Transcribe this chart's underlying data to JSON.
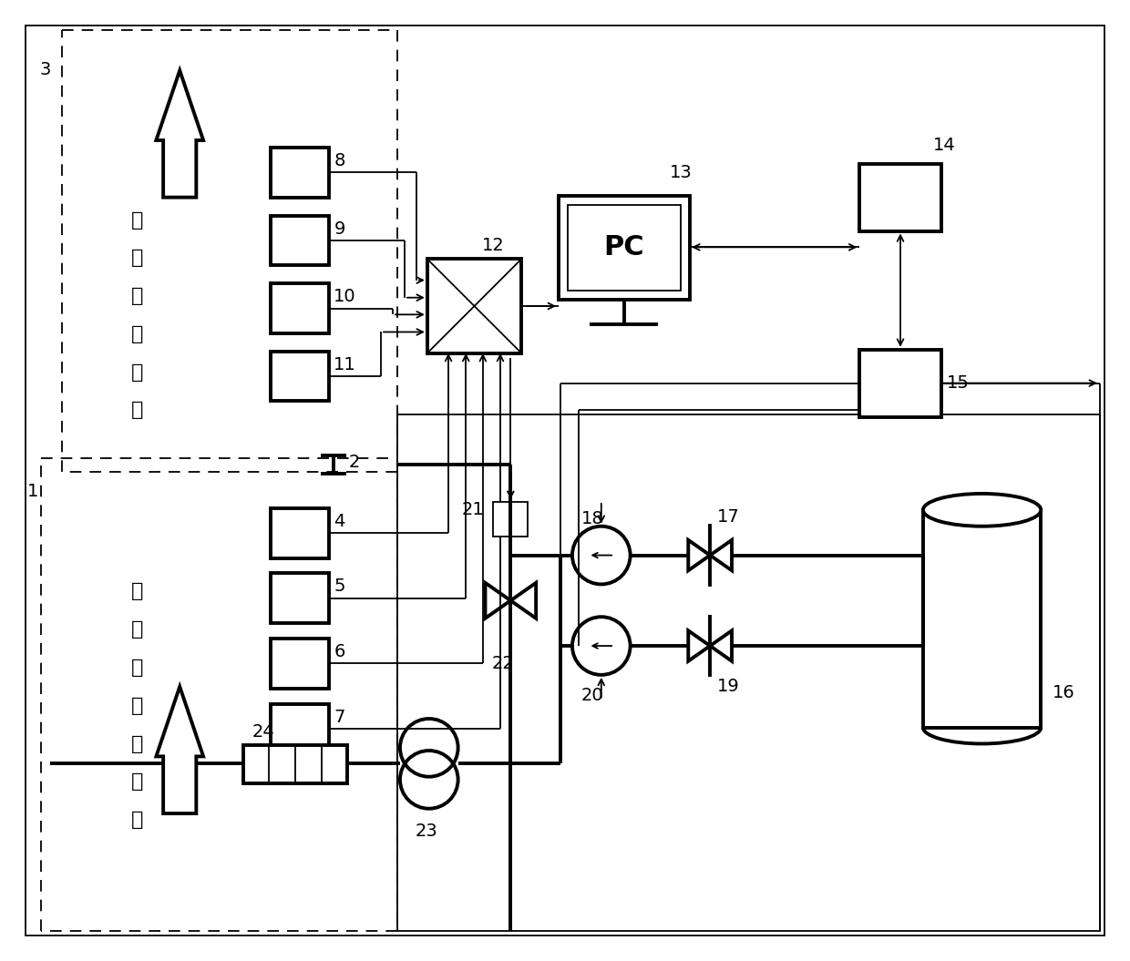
{
  "bg_color": "#ffffff",
  "lc": "#000000",
  "lw_thick": 2.8,
  "lw_thin": 1.3,
  "lw_dash": 1.3,
  "fig_w": 12.4,
  "fig_h": 10.55,
  "text_lp": [
    "低压",
    "天然",
    "管线"
  ],
  "text_hp": [
    "高压",
    "天然气",
    "管线"
  ],
  "text_pc": "PC"
}
